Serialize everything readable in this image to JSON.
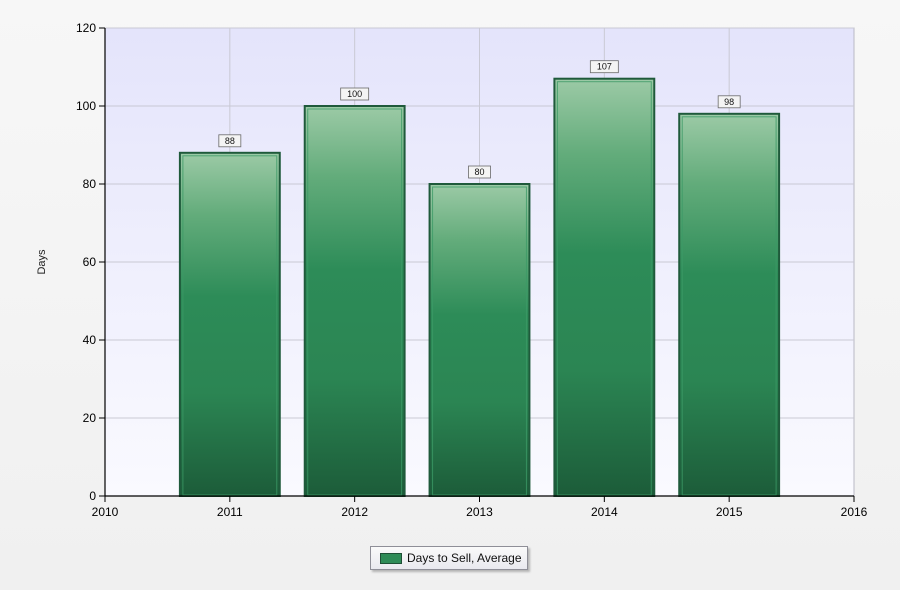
{
  "chart_data": {
    "type": "bar",
    "title": "",
    "xlabel": "",
    "ylabel": "Days",
    "x_ticks": [
      "2010",
      "2011",
      "2012",
      "2013",
      "2014",
      "2015",
      "2016"
    ],
    "xlim": [
      2010,
      2016
    ],
    "ylim": [
      0,
      120
    ],
    "y_ticks": [
      0,
      20,
      40,
      60,
      80,
      100,
      120
    ],
    "grid": true,
    "legend_position": "bottom-center",
    "series": [
      {
        "name": "Days to Sell, Average",
        "color": "#2e8b57",
        "points": [
          {
            "x": 2011,
            "value": 88
          },
          {
            "x": 2012,
            "value": 100
          },
          {
            "x": 2013,
            "value": 80
          },
          {
            "x": 2014,
            "value": 107
          },
          {
            "x": 2015,
            "value": 98
          }
        ]
      }
    ]
  },
  "legend": {
    "label": "Days to Sell, Average"
  }
}
